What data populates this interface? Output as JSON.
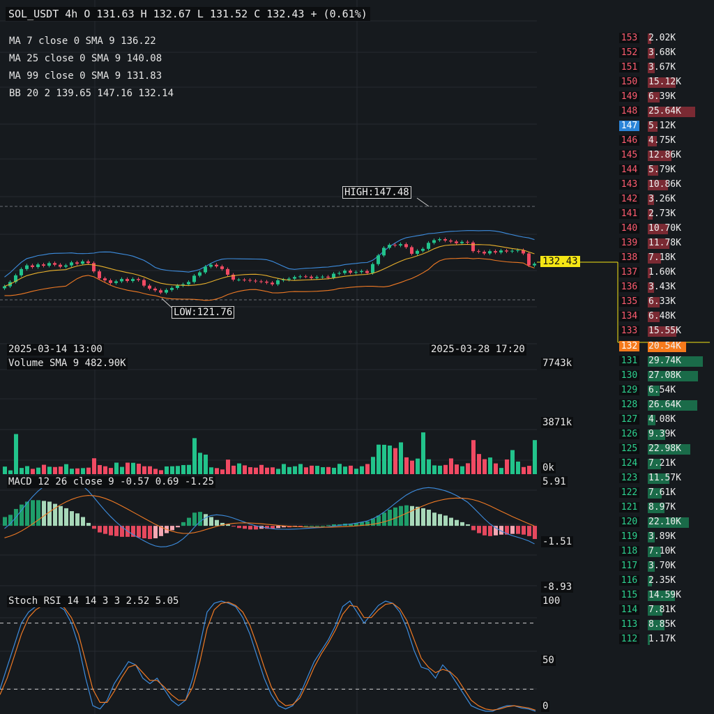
{
  "header": {
    "ticker_line": "SOL_USDT 4h O 131.63 H 132.67 L 131.52 C 132.43 + (0.61%)"
  },
  "indicators": {
    "ma7": "MA 7 close 0 SMA 9 136.22",
    "ma25": "MA 25 close 0 SMA 9 140.08",
    "ma99": "MA 99 close 0 SMA 9 131.83",
    "bb": "BB 20 2 139.65 147.16 132.14",
    "volume": "Volume SMA 9 482.90K",
    "macd": "MACD 12 26 close 9 -0.57 0.69 -1.25",
    "stoch": "Stoch RSI 14 14 3 3 2.52 5.05"
  },
  "annotations": {
    "high": "HIGH:147.48",
    "low": "LOW:121.76",
    "last_price": "132.43",
    "date_left": "2025-03-14 13:00",
    "date_right": "2025-03-28 17:20"
  },
  "axes": {
    "volume_max": "7743k",
    "volume_mid": "3871k",
    "volume_min": "0k",
    "macd_top": "5.91",
    "macd_mid": "-1.51",
    "macd_bottom": "-8.93",
    "stoch_top": "100",
    "stoch_mid": "50",
    "stoch_bottom": "0"
  },
  "colors": {
    "up": "#22c38b",
    "down": "#f14a63",
    "ma_blue": "#3d8ddf",
    "ma_orange": "#f07a24",
    "ma_yellow": "#e9b12c",
    "ask_bar": "#7a2a33",
    "bid_bar": "#1a6b49",
    "current_level": "#f57a1b",
    "highlight_level": "#2a84d8"
  },
  "order_book": {
    "asks": [
      {
        "price": "153",
        "vol": "2.02K",
        "v": 2.02
      },
      {
        "price": "152",
        "vol": "3.68K",
        "v": 3.68
      },
      {
        "price": "151",
        "vol": "3.67K",
        "v": 3.67
      },
      {
        "price": "150",
        "vol": "15.12K",
        "v": 15.12
      },
      {
        "price": "149",
        "vol": "6.39K",
        "v": 6.39
      },
      {
        "price": "148",
        "vol": "25.64K",
        "v": 25.64
      },
      {
        "price": "147",
        "vol": "5.12K",
        "v": 5.12,
        "highlight": true
      },
      {
        "price": "146",
        "vol": "4.75K",
        "v": 4.75
      },
      {
        "price": "145",
        "vol": "12.86K",
        "v": 12.86
      },
      {
        "price": "144",
        "vol": "5.79K",
        "v": 5.79
      },
      {
        "price": "143",
        "vol": "10.86K",
        "v": 10.86
      },
      {
        "price": "142",
        "vol": "3.26K",
        "v": 3.26
      },
      {
        "price": "141",
        "vol": "2.73K",
        "v": 2.73
      },
      {
        "price": "140",
        "vol": "10.70K",
        "v": 10.7
      },
      {
        "price": "139",
        "vol": "11.78K",
        "v": 11.78
      },
      {
        "price": "138",
        "vol": "7.18K",
        "v": 7.18
      },
      {
        "price": "137",
        "vol": "1.60K",
        "v": 1.6
      },
      {
        "price": "136",
        "vol": "3.43K",
        "v": 3.43
      },
      {
        "price": "135",
        "vol": "6.33K",
        "v": 6.33
      },
      {
        "price": "134",
        "vol": "6.48K",
        "v": 6.48
      },
      {
        "price": "133",
        "vol": "15.55K",
        "v": 15.55
      }
    ],
    "current": {
      "price": "132",
      "vol": "20.54K",
      "v": 20.54
    },
    "bids": [
      {
        "price": "131",
        "vol": "29.74K",
        "v": 29.74
      },
      {
        "price": "130",
        "vol": "27.08K",
        "v": 27.08
      },
      {
        "price": "129",
        "vol": "6.54K",
        "v": 6.54
      },
      {
        "price": "128",
        "vol": "26.64K",
        "v": 26.64
      },
      {
        "price": "127",
        "vol": "4.08K",
        "v": 4.08
      },
      {
        "price": "126",
        "vol": "9.39K",
        "v": 9.39
      },
      {
        "price": "125",
        "vol": "22.98K",
        "v": 22.98
      },
      {
        "price": "124",
        "vol": "7.21K",
        "v": 7.21
      },
      {
        "price": "123",
        "vol": "11.57K",
        "v": 11.57
      },
      {
        "price": "122",
        "vol": "7.61K",
        "v": 7.61
      },
      {
        "price": "121",
        "vol": "8.97K",
        "v": 8.97
      },
      {
        "price": "120",
        "vol": "22.10K",
        "v": 22.1
      },
      {
        "price": "119",
        "vol": "3.89K",
        "v": 3.89
      },
      {
        "price": "118",
        "vol": "7.10K",
        "v": 7.1
      },
      {
        "price": "117",
        "vol": "3.70K",
        "v": 3.7
      },
      {
        "price": "116",
        "vol": "2.35K",
        "v": 2.35
      },
      {
        "price": "115",
        "vol": "14.59K",
        "v": 14.59
      },
      {
        "price": "114",
        "vol": "7.81K",
        "v": 7.81
      },
      {
        "price": "113",
        "vol": "8.85K",
        "v": 8.85
      },
      {
        "price": "112",
        "vol": "1.17K",
        "v": 1.17
      }
    ]
  },
  "chart_data": {
    "type": "candlestick",
    "symbol": "SOL_USDT",
    "interval": "4h",
    "price_range": [
      119,
      152
    ],
    "volume_range": [
      0,
      7743
    ],
    "macd_range": [
      -8.93,
      5.91
    ],
    "stoch_range": [
      0,
      100
    ],
    "closes": [
      125.6,
      126.9,
      128.9,
      130.8,
      131.9,
      131.4,
      132.2,
      131.8,
      132.6,
      132.1,
      131.5,
      131.9,
      132.8,
      132.4,
      133.1,
      132.6,
      130.1,
      128.0,
      127.4,
      126.6,
      127.1,
      127.8,
      127.2,
      127.8,
      127.5,
      125.8,
      124.9,
      124.4,
      123.7,
      124.5,
      125.1,
      125.8,
      126.2,
      126.9,
      128.8,
      129.8,
      131.5,
      132.1,
      131.6,
      130.8,
      129.1,
      127.6,
      127.6,
      127.5,
      127.3,
      127.1,
      127.0,
      126.7,
      126.2,
      127.4,
      127.6,
      127.9,
      128.4,
      128.6,
      128.5,
      128.1,
      128.4,
      128.5,
      128.2,
      129.4,
      129.6,
      130.3,
      129.7,
      129.9,
      130.2,
      129.6,
      132.3,
      134.9,
      137.2,
      138.1,
      137.9,
      138.3,
      137.4,
      135.4,
      136.3,
      136.9,
      138.7,
      139.5,
      139.8,
      139.4,
      139.1,
      138.6,
      139.0,
      138.8,
      136.2,
      136.0,
      135.5,
      136.2,
      135.8,
      136.4,
      136.1,
      136.3,
      136.5,
      135.5,
      131.9,
      132.4
    ],
    "volumes": [
      500,
      250,
      2650,
      410,
      530,
      350,
      430,
      620,
      490,
      470,
      500,
      660,
      360,
      380,
      400,
      430,
      1050,
      600,
      520,
      410,
      760,
      480,
      760,
      750,
      690,
      520,
      520,
      350,
      260,
      510,
      520,
      540,
      600,
      610,
      2380,
      1410,
      1290,
      450,
      400,
      310,
      960,
      560,
      710,
      580,
      460,
      430,
      610,
      430,
      450,
      350,
      670,
      470,
      520,
      670,
      450,
      560,
      550,
      460,
      470,
      420,
      680,
      500,
      560,
      360,
      520,
      670,
      1140,
      1950,
      1940,
      1890,
      1720,
      2100,
      1110,
      890,
      1030,
      2760,
      980,
      580,
      560,
      610,
      1040,
      640,
      520,
      720,
      2250,
      1330,
      990,
      1100,
      710,
      410,
      970,
      1590,
      830,
      470,
      550,
      2250
    ],
    "macd_hist": [
      1.2,
      1.5,
      2.3,
      2.9,
      3.3,
      3.5,
      3.5,
      3.4,
      3.3,
      3.0,
      2.7,
      2.4,
      2.0,
      1.7,
      1.2,
      0.4,
      -0.4,
      -0.9,
      -1.1,
      -1.3,
      -1.4,
      -1.5,
      -1.5,
      -1.5,
      -1.6,
      -1.7,
      -1.8,
      -1.7,
      -1.4,
      -1.0,
      -0.6,
      -0.2,
      0.5,
      1.1,
      1.8,
      1.9,
      1.6,
      1.2,
      0.8,
      0.4,
      0.2,
      -0.1,
      -0.3,
      -0.4,
      -0.5,
      -0.5,
      -0.4,
      -0.4,
      -0.4,
      -0.3,
      -0.2,
      -0.2,
      -0.1,
      -0.1,
      0.0,
      0.0,
      0.0,
      0.0,
      0.1,
      0.2,
      0.2,
      0.3,
      0.3,
      0.4,
      0.5,
      0.6,
      1.0,
      1.4,
      1.8,
      2.2,
      2.5,
      2.7,
      2.8,
      2.7,
      2.6,
      2.4,
      2.2,
      1.8,
      1.6,
      1.4,
      1.1,
      0.8,
      0.5,
      0.2,
      -0.6,
      -1.0,
      -1.3,
      -1.4,
      -1.3,
      -1.2,
      -1.2,
      -1.1,
      -1.1,
      -1.2,
      -1.4,
      -1.8
    ],
    "stoch_k": [
      20,
      40,
      60,
      80,
      90,
      95,
      98,
      98,
      96,
      92,
      80,
      60,
      30,
      5,
      2,
      10,
      25,
      35,
      45,
      42,
      30,
      25,
      30,
      20,
      10,
      5,
      10,
      30,
      60,
      90,
      98,
      100,
      98,
      95,
      85,
      70,
      50,
      30,
      15,
      5,
      2,
      5,
      15,
      30,
      45,
      55,
      65,
      78,
      95,
      100,
      90,
      80,
      88,
      96,
      100,
      98,
      90,
      75,
      55,
      40,
      38,
      30,
      42,
      35,
      25,
      15,
      5,
      2,
      0,
      0,
      3,
      5,
      5,
      3,
      2,
      0
    ],
    "stoch_d": [
      15,
      30,
      50,
      70,
      85,
      92,
      96,
      97,
      97,
      94,
      85,
      70,
      45,
      20,
      8,
      8,
      18,
      30,
      40,
      42,
      35,
      28,
      28,
      22,
      15,
      10,
      10,
      22,
      45,
      75,
      92,
      98,
      99,
      96,
      90,
      78,
      60,
      40,
      22,
      10,
      5,
      6,
      12,
      25,
      40,
      52,
      62,
      74,
      88,
      96,
      95,
      85,
      85,
      92,
      97,
      98,
      93,
      82,
      65,
      48,
      40,
      35,
      38,
      36,
      30,
      20,
      10,
      5,
      2,
      1,
      2,
      4,
      5,
      4,
      3,
      1
    ]
  }
}
